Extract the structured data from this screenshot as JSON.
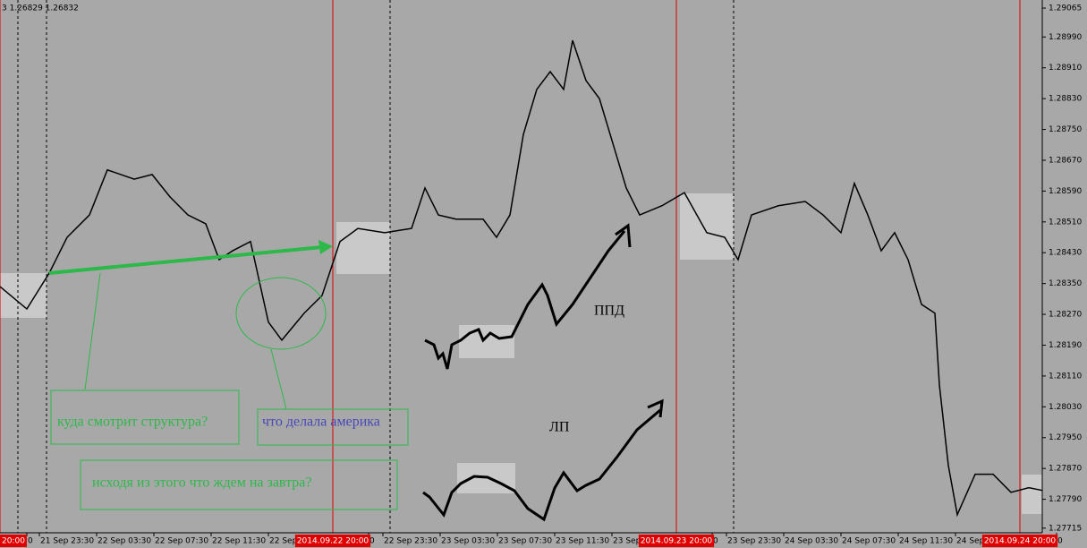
{
  "header": "3 1.26829 1.26832",
  "chart_data": {
    "type": "line",
    "x": [
      0,
      30,
      55,
      75,
      100,
      120,
      150,
      170,
      190,
      210,
      230,
      245,
      260,
      280,
      300,
      315,
      340,
      360,
      380,
      400,
      430,
      460,
      475,
      490,
      510,
      540,
      555,
      570,
      585,
      600,
      615,
      630,
      640,
      655,
      670,
      685,
      700,
      715,
      740,
      765,
      790,
      810,
      825,
      840,
      870,
      900,
      920,
      940,
      955,
      970,
      985,
      1000,
      1015,
      1030,
      1045,
      1050,
      1060,
      1070,
      1090,
      1110,
      1130,
      1150,
      1165
    ],
    "series": [
      {
        "color": "#000000",
        "values": [
          1.28342,
          1.28284,
          1.28377,
          1.2847,
          1.28528,
          1.28645,
          1.28621,
          1.28633,
          1.28575,
          1.28528,
          1.28505,
          1.28412,
          1.28435,
          1.28459,
          1.2825,
          1.28203,
          1.28273,
          1.28319,
          1.28459,
          1.28493,
          1.28482,
          1.28493,
          1.28598,
          1.28528,
          1.28517,
          1.28517,
          1.2847,
          1.28528,
          1.28737,
          1.28854,
          1.289,
          1.28854,
          1.28981,
          1.28877,
          1.2883,
          1.28714,
          1.28598,
          1.28528,
          1.28552,
          1.28586,
          1.28482,
          1.2847,
          1.28412,
          1.28528,
          1.28552,
          1.28563,
          1.28528,
          1.28482,
          1.2861,
          1.28528,
          1.28435,
          1.28482,
          1.28412,
          1.28296,
          1.28273,
          1.28087,
          1.27878,
          1.2775,
          1.27855,
          1.27855,
          1.27808,
          1.2782,
          1.27813
        ]
      }
    ],
    "xlim": [
      0,
      1165
    ],
    "ylim": [
      1.27703,
      1.29086
    ],
    "yticks": [
      1.29065,
      {
        "value": 1.2899,
        "label": "1.28990"
      },
      {
        "value": 1.2891,
        "label": "1.28910"
      },
      {
        "value": 1.2883,
        "label": "1.28830"
      },
      {
        "value": 1.2875,
        "label": "1.28750"
      },
      {
        "value": 1.2867,
        "label": "1.28670"
      },
      {
        "value": 1.2859,
        "label": "1.28590"
      },
      {
        "value": 1.2851,
        "label": "1.28510"
      },
      {
        "value": 1.2843,
        "label": "1.28430"
      },
      {
        "value": 1.2835,
        "label": "1.28350"
      },
      {
        "value": 1.2827,
        "label": "1.28270"
      },
      {
        "value": 1.2819,
        "label": "1.28190"
      },
      {
        "value": 1.2811,
        "label": "1.28110"
      },
      {
        "value": 1.2803,
        "label": "1.28030"
      },
      {
        "value": 1.2795,
        "label": "1.27950"
      },
      {
        "value": 1.2787,
        "label": "1.27870"
      },
      {
        "value": 1.2779,
        "label": "1.27790"
      },
      1.27715
    ],
    "xticks": [
      {
        "value": 30,
        "label": "0"
      },
      {
        "value": 44,
        "label": "21 Sep 23:30"
      },
      {
        "value": 108,
        "label": "22 Sep 03:30"
      },
      {
        "value": 172,
        "label": "22 Sep 07:30"
      },
      {
        "value": 236,
        "label": "22 Sep 11:30"
      },
      {
        "value": 300,
        "label": "22 Sep"
      },
      {
        "value": 412,
        "label": "0"
      },
      {
        "value": 428,
        "label": "22 Sep 23:30"
      },
      {
        "value": 492,
        "label": "23 Sep 03:30"
      },
      {
        "value": 556,
        "label": "23 Sep 07:30"
      },
      {
        "value": 620,
        "label": "23 Sep 11:30"
      },
      {
        "value": 684,
        "label": "23 Sep"
      },
      {
        "value": 796,
        "label": "0"
      },
      {
        "value": 812,
        "label": "23 Sep 23:30"
      },
      {
        "value": 876,
        "label": "24 Sep 03:30"
      },
      {
        "value": 940,
        "label": "24 Sep 07:30"
      },
      {
        "value": 1004,
        "label": "24 Sep 11:30"
      },
      {
        "value": 1068,
        "label": "24 Sep"
      },
      {
        "value": 1181,
        "label": "0"
      }
    ],
    "session_markers": [
      {
        "value": 0,
        "label": "20:00"
      },
      {
        "value": 372,
        "label": "2014.09.22 20:00"
      },
      {
        "value": 756,
        "label": "2014.09.23 20:00"
      },
      {
        "value": 1140,
        "label": "2014.09.24 20:00"
      }
    ],
    "dashed_lines": [
      20,
      52,
      436,
      820
    ],
    "annotations": [
      "куда смотрит структура?",
      "что делала америка",
      "исходя из этого что ждем на завтра?",
      "ППД",
      "ЛП"
    ]
  }
}
